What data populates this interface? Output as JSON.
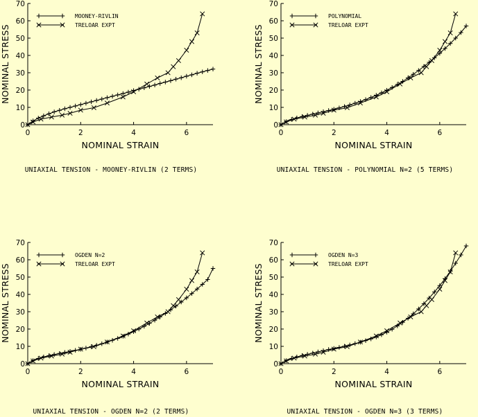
{
  "background": "#fefecf",
  "chart_data": [
    {
      "type": "line",
      "caption": "UNIAXIAL TENSION - MOONEY-RIVLIN (2 TERMS)",
      "xlabel": "NOMINAL STRAIN",
      "ylabel": "NOMINAL STRESS",
      "xlim": [
        0,
        7
      ],
      "ylim": [
        0,
        70
      ],
      "xticks": [
        0,
        2,
        4,
        6
      ],
      "yticks": [
        0,
        10,
        20,
        30,
        40,
        50,
        60,
        70
      ],
      "legend_position": "top-left",
      "series": [
        {
          "name": "MOONEY-RIVLIN",
          "marker": "plus",
          "x": [
            0,
            0.2,
            0.4,
            0.6,
            0.8,
            1.0,
            1.2,
            1.4,
            1.6,
            1.8,
            2.0,
            2.2,
            2.4,
            2.6,
            2.8,
            3.0,
            3.2,
            3.4,
            3.6,
            3.8,
            4.0,
            4.2,
            4.4,
            4.6,
            4.8,
            5.0,
            5.2,
            5.4,
            5.6,
            5.8,
            6.0,
            6.2,
            6.4,
            6.6,
            6.8,
            7.0
          ],
          "y": [
            0,
            2.2,
            3.8,
            5.1,
            6.3,
            7.4,
            8.3,
            9.2,
            10.0,
            10.8,
            11.6,
            12.4,
            13.2,
            14.0,
            14.8,
            15.6,
            16.4,
            17.2,
            18.0,
            18.8,
            19.7,
            20.5,
            21.3,
            22.1,
            22.9,
            23.8,
            24.6,
            25.4,
            26.3,
            27.1,
            28.0,
            28.8,
            29.7,
            30.5,
            31.3,
            32.1
          ]
        },
        {
          "name": "TRELOAR EXPT",
          "marker": "x",
          "x": [
            0,
            0.2,
            0.5,
            0.9,
            1.3,
            1.6,
            2.0,
            2.5,
            3.0,
            3.6,
            4.0,
            4.5,
            4.9,
            5.3,
            5.5,
            5.7,
            6.0,
            6.2,
            6.4,
            6.6
          ],
          "y": [
            0,
            1.6,
            3.2,
            4.4,
            5.5,
            6.6,
            8.4,
            9.8,
            12.5,
            16.0,
            19.0,
            23.5,
            27.0,
            30.0,
            33.5,
            37.0,
            43.0,
            48.0,
            53.0,
            64.0
          ]
        }
      ]
    },
    {
      "type": "line",
      "caption": "UNIAXIAL TENSION - POLYNOMIAL N=2 (5 TERMS)",
      "xlabel": "NOMINAL STRAIN",
      "ylabel": "NOMINAL STRESS",
      "xlim": [
        0,
        7
      ],
      "ylim": [
        0,
        70
      ],
      "xticks": [
        0,
        2,
        4,
        6
      ],
      "yticks": [
        0,
        10,
        20,
        30,
        40,
        50,
        60,
        70
      ],
      "legend_position": "top-left",
      "series": [
        {
          "name": "POLYNOMIAL",
          "marker": "plus",
          "x": [
            0,
            0.2,
            0.4,
            0.6,
            0.8,
            1.0,
            1.2,
            1.4,
            1.6,
            1.8,
            2.0,
            2.2,
            2.4,
            2.6,
            2.8,
            3.0,
            3.2,
            3.4,
            3.6,
            3.8,
            4.0,
            4.2,
            4.4,
            4.6,
            4.8,
            5.0,
            5.2,
            5.4,
            5.6,
            5.8,
            6.0,
            6.2,
            6.4,
            6.6,
            6.8,
            7.0
          ],
          "y": [
            0,
            1.8,
            3.0,
            3.9,
            4.7,
            5.4,
            6.1,
            6.8,
            7.5,
            8.2,
            8.9,
            9.7,
            10.5,
            11.4,
            12.4,
            13.4,
            14.5,
            15.7,
            17.0,
            18.4,
            19.9,
            21.5,
            23.2,
            25.0,
            27.0,
            29.1,
            31.3,
            33.6,
            36.0,
            38.6,
            41.2,
            44.0,
            46.9,
            50.0,
            53.2,
            57.0
          ]
        },
        {
          "name": "TRELOAR EXPT",
          "marker": "x",
          "x": [
            0,
            0.2,
            0.5,
            0.9,
            1.3,
            1.6,
            2.0,
            2.5,
            3.0,
            3.6,
            4.0,
            4.5,
            4.9,
            5.3,
            5.5,
            5.7,
            6.0,
            6.2,
            6.4,
            6.6
          ],
          "y": [
            0,
            1.6,
            3.2,
            4.4,
            5.5,
            6.6,
            8.4,
            9.8,
            12.5,
            16.0,
            19.0,
            23.5,
            27.0,
            30.0,
            33.5,
            37.0,
            43.0,
            48.0,
            53.0,
            64.0
          ]
        }
      ]
    },
    {
      "type": "line",
      "caption": "UNIAXIAL TENSION - OGDEN N=2 (2 TERMS)",
      "xlabel": "NOMINAL STRAIN",
      "ylabel": "NOMINAL STRESS",
      "xlim": [
        0,
        7
      ],
      "ylim": [
        0,
        70
      ],
      "xticks": [
        0,
        2,
        4,
        6
      ],
      "yticks": [
        0,
        10,
        20,
        30,
        40,
        50,
        60,
        70
      ],
      "legend_position": "top-left",
      "series": [
        {
          "name": "OGDEN N=2",
          "marker": "plus",
          "x": [
            0,
            0.2,
            0.4,
            0.6,
            0.8,
            1.0,
            1.2,
            1.4,
            1.6,
            1.8,
            2.0,
            2.2,
            2.4,
            2.6,
            2.8,
            3.0,
            3.2,
            3.4,
            3.6,
            3.8,
            4.0,
            4.2,
            4.4,
            4.6,
            4.8,
            5.0,
            5.2,
            5.4,
            5.6,
            5.8,
            6.0,
            6.2,
            6.4,
            6.6,
            6.8,
            7.0
          ],
          "y": [
            0,
            1.8,
            3.0,
            3.9,
            4.6,
            5.3,
            5.9,
            6.5,
            7.1,
            7.7,
            8.3,
            9.0,
            9.8,
            10.6,
            11.5,
            12.5,
            13.5,
            14.6,
            15.8,
            17.1,
            18.5,
            20.0,
            21.6,
            23.3,
            25.1,
            27.0,
            29.0,
            31.1,
            33.3,
            35.6,
            38.0,
            40.5,
            43.1,
            45.8,
            48.6,
            55.0
          ]
        },
        {
          "name": "TRELOAR EXPT",
          "marker": "x",
          "x": [
            0,
            0.2,
            0.5,
            0.9,
            1.3,
            1.6,
            2.0,
            2.5,
            3.0,
            3.6,
            4.0,
            4.5,
            4.9,
            5.3,
            5.5,
            5.7,
            6.0,
            6.2,
            6.4,
            6.6
          ],
          "y": [
            0,
            1.6,
            3.2,
            4.4,
            5.5,
            6.6,
            8.4,
            9.8,
            12.5,
            16.0,
            19.0,
            23.5,
            27.0,
            30.0,
            33.5,
            37.0,
            43.0,
            48.0,
            53.0,
            64.0
          ]
        }
      ]
    },
    {
      "type": "line",
      "caption": "UNIAXIAL TENSION - OGDEN N=3 (3 TERMS)",
      "xlabel": "NOMINAL STRAIN",
      "ylabel": "NOMINAL STRESS",
      "xlim": [
        0,
        7
      ],
      "ylim": [
        0,
        70
      ],
      "xticks": [
        0,
        2,
        4,
        6
      ],
      "yticks": [
        0,
        10,
        20,
        30,
        40,
        50,
        60,
        70
      ],
      "legend_position": "top-left",
      "series": [
        {
          "name": "OGDEN N=3",
          "marker": "plus",
          "x": [
            0,
            0.2,
            0.4,
            0.6,
            0.8,
            1.0,
            1.2,
            1.4,
            1.6,
            1.8,
            2.0,
            2.2,
            2.4,
            2.6,
            2.8,
            3.0,
            3.2,
            3.4,
            3.6,
            3.8,
            4.0,
            4.2,
            4.4,
            4.6,
            4.8,
            5.0,
            5.2,
            5.4,
            5.6,
            5.8,
            6.0,
            6.2,
            6.4,
            6.6,
            6.8,
            7.0
          ],
          "y": [
            0,
            1.8,
            3.0,
            3.9,
            4.7,
            5.4,
            6.1,
            6.8,
            7.5,
            8.2,
            8.8,
            9.4,
            10.1,
            10.8,
            11.6,
            12.4,
            13.3,
            14.3,
            15.4,
            16.7,
            18.2,
            19.9,
            21.8,
            23.9,
            26.2,
            28.8,
            31.6,
            34.6,
            37.9,
            41.4,
            45.1,
            49.1,
            53.4,
            58.0,
            62.8,
            68.0
          ]
        },
        {
          "name": "TRELOAR EXPT",
          "marker": "x",
          "x": [
            0,
            0.2,
            0.5,
            0.9,
            1.3,
            1.6,
            2.0,
            2.5,
            3.0,
            3.6,
            4.0,
            4.5,
            4.9,
            5.3,
            5.5,
            5.7,
            6.0,
            6.2,
            6.4,
            6.6
          ],
          "y": [
            0,
            1.6,
            3.2,
            4.4,
            5.5,
            6.6,
            8.4,
            9.8,
            12.5,
            16.0,
            19.0,
            23.5,
            27.0,
            30.0,
            33.5,
            37.0,
            43.0,
            48.0,
            53.0,
            64.0
          ]
        }
      ]
    }
  ]
}
